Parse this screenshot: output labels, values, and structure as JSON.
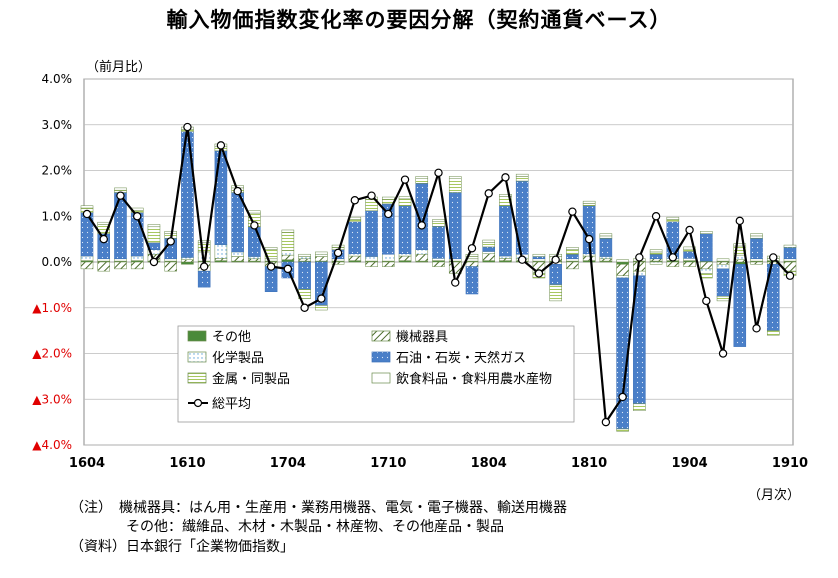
{
  "title": "輸入物価指数変化率の要因分解（契約通貨ベース）",
  "colors": {
    "sonota": "#4a8a3a",
    "kikai": "#ffffff",
    "kagaku": "#e8f4fb",
    "sekiyu": "#4a7fc8",
    "kinzoku": "#f0f7dc",
    "inshoku": "#ffffff",
    "avg": "#000000",
    "neg_tick": "#e00000"
  },
  "chart_data": {
    "type": "bar",
    "stacked": true,
    "title": "輸入物価指数変化率の要因分解（契約通貨ベース）",
    "ylabel": "（前月比）",
    "xlabel": "（月次）",
    "ylim": [
      -4.0,
      4.0
    ],
    "y_ticks": [
      "4.0%",
      "3.0%",
      "2.0%",
      "1.0%",
      "0.0%",
      "▲1.0%",
      "▲2.0%",
      "▲3.0%",
      "▲4.0%"
    ],
    "y_tick_values": [
      4,
      3,
      2,
      1,
      0,
      -1,
      -2,
      -3,
      -4
    ],
    "x_tick_labels": [
      "1604",
      "1610",
      "1704",
      "1710",
      "1804",
      "1810",
      "1904",
      "1910"
    ],
    "x_tick_index": [
      0,
      6,
      12,
      18,
      24,
      30,
      36,
      42
    ],
    "categories": [
      "1604",
      "1605",
      "1606",
      "1607",
      "1608",
      "1609",
      "1610",
      "1611",
      "1612",
      "1701",
      "1702",
      "1703",
      "1704",
      "1705",
      "1706",
      "1707",
      "1708",
      "1709",
      "1710",
      "1711",
      "1712",
      "1801",
      "1802",
      "1803",
      "1804",
      "1805",
      "1806",
      "1807",
      "1808",
      "1809",
      "1810",
      "1811",
      "1812",
      "1901",
      "1902",
      "1903",
      "1904",
      "1905",
      "1906",
      "1907",
      "1908",
      "1909",
      "1910"
    ],
    "series": [
      {
        "name": "その他",
        "key": "sonota",
        "pattern": "solid",
        "values": [
          0.03,
          0.02,
          0.02,
          0.03,
          0.02,
          0.02,
          -0.05,
          0.02,
          0.03,
          0.02,
          0.02,
          0.02,
          0.05,
          0.02,
          0.02,
          0.02,
          0.03,
          0.02,
          0.02,
          0.03,
          0.02,
          0.03,
          0.02,
          0.02,
          0.03,
          0.03,
          0.02,
          0.02,
          0.02,
          0.02,
          0.03,
          0.02,
          -0.05,
          0.02,
          0.02,
          0.03,
          0.03,
          0.02,
          0.02,
          -0.05,
          0.02,
          0.03,
          0.02
        ]
      },
      {
        "name": "機械器具",
        "key": "kikai",
        "pattern": "diag",
        "values": [
          -0.15,
          -0.2,
          -0.15,
          -0.15,
          0.15,
          -0.2,
          0.05,
          -0.2,
          0.05,
          0.1,
          0.05,
          -0.1,
          0.1,
          0.05,
          0.1,
          -0.05,
          0.1,
          -0.1,
          -0.1,
          0.1,
          0.15,
          -0.1,
          -0.25,
          -0.1,
          0.15,
          0.05,
          0.05,
          -0.25,
          0.1,
          -0.15,
          0.1,
          0.05,
          -0.25,
          -0.2,
          0.05,
          -0.1,
          -0.1,
          -0.15,
          -0.05,
          0.05,
          -0.05,
          -0.05,
          -0.2
        ]
      },
      {
        "name": "化学製品",
        "key": "kagaku",
        "pattern": "dots",
        "values": [
          0.1,
          0.05,
          0.05,
          0.1,
          0.1,
          0.05,
          0.05,
          0.2,
          0.3,
          0.1,
          0.05,
          0.05,
          0.1,
          0.05,
          0.05,
          0.05,
          0.05,
          0.1,
          0.15,
          0.05,
          0.1,
          0.05,
          0.05,
          0.05,
          0.05,
          0.05,
          0.1,
          0.05,
          -0.05,
          0.05,
          0.05,
          0.05,
          -0.05,
          -0.1,
          -0.05,
          0.05,
          0.05,
          -0.1,
          -0.1,
          0.1,
          0.05,
          0.05,
          0.05
        ]
      },
      {
        "name": "石油・石炭・天然ガス",
        "key": "sekiyu",
        "pattern": "dots-dark",
        "values": [
          0.95,
          0.55,
          1.45,
          0.95,
          0.15,
          0.45,
          2.75,
          -0.35,
          2.05,
          1.3,
          0.65,
          -0.55,
          -0.35,
          -0.6,
          -0.95,
          0.2,
          0.7,
          1.0,
          1.1,
          1.05,
          1.45,
          0.7,
          1.45,
          -0.6,
          0.1,
          1.1,
          1.6,
          0.05,
          -0.45,
          0.1,
          1.05,
          0.4,
          -3.3,
          -2.8,
          0.1,
          0.8,
          0.15,
          0.6,
          -0.6,
          -1.8,
          0.45,
          -1.45,
          0.25
        ]
      },
      {
        "name": "金属・同製品",
        "key": "kinzoku",
        "pattern": "hlines",
        "values": [
          0.1,
          0.2,
          0.05,
          0.05,
          0.35,
          0.1,
          0.05,
          0.2,
          0.1,
          0.1,
          0.3,
          0.2,
          0.4,
          -0.2,
          -0.1,
          0.05,
          0.05,
          0.25,
          0.1,
          0.15,
          0.1,
          0.1,
          0.3,
          0.05,
          0.1,
          0.2,
          0.1,
          -0.1,
          -0.35,
          0.1,
          0.05,
          0.05,
          -0.05,
          -0.15,
          0.05,
          0.05,
          0.05,
          -0.1,
          -0.1,
          0.2,
          0.05,
          -0.1,
          -0.1
        ]
      },
      {
        "name": "飲食料品・食料用農水産物",
        "key": "inshoku",
        "pattern": "blank",
        "values": [
          0.05,
          0.05,
          0.05,
          0.05,
          0.05,
          0.05,
          0.05,
          0.05,
          0.05,
          0.05,
          0.05,
          0.05,
          0.05,
          0.05,
          0.05,
          0.05,
          0.05,
          0.05,
          0.05,
          0.05,
          0.05,
          0.05,
          0.05,
          0.05,
          0.05,
          0.05,
          0.05,
          0.05,
          0.05,
          0.05,
          0.05,
          0.05,
          0.05,
          0.05,
          0.05,
          0.05,
          0.05,
          0.05,
          0.05,
          0.05,
          0.05,
          0.05,
          0.05
        ]
      }
    ],
    "line": {
      "name": "総平均",
      "key": "avg",
      "values": [
        1.05,
        0.5,
        1.45,
        1.0,
        0.0,
        0.45,
        2.95,
        -0.1,
        2.55,
        1.55,
        0.8,
        -0.1,
        -0.15,
        -1.0,
        -0.8,
        0.2,
        1.35,
        1.45,
        1.05,
        1.8,
        0.8,
        1.95,
        -0.45,
        0.3,
        1.5,
        1.85,
        0.05,
        -0.25,
        0.05,
        1.1,
        0.5,
        -3.5,
        -2.95,
        0.1,
        1.0,
        0.1,
        0.7,
        -0.85,
        -2.0,
        0.9,
        -1.45,
        0.1,
        -0.3
      ]
    }
  },
  "notes": {
    "line1": "（注）　機械器具：はん用・生産用・業務用機器、電気・電子機器、輸送用機器",
    "line2": "　　　　その他：繊維品、木材・木製品・林産物、その他産品・製品",
    "line3": "（資料）日本銀行「企業物価指数」"
  }
}
